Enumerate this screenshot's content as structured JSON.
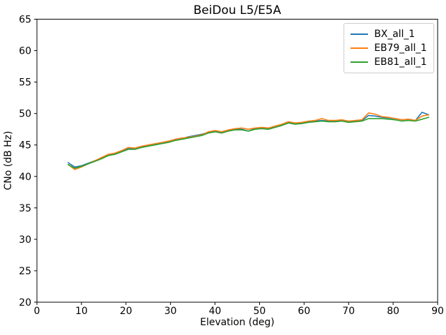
{
  "chart_data": {
    "type": "line",
    "title": "BeiDou L5/E5A",
    "xlabel": "Elevation (deg)",
    "ylabel": "CNo (dB Hz)",
    "xlim": [
      0,
      90
    ],
    "ylim": [
      20,
      65
    ],
    "x_ticks": [
      0,
      10,
      20,
      30,
      40,
      50,
      60,
      70,
      80,
      90
    ],
    "y_ticks": [
      20,
      25,
      30,
      35,
      40,
      45,
      50,
      55,
      60,
      65
    ],
    "grid": false,
    "legend_position": "upper right",
    "axis_color": "#000000",
    "x": [
      7,
      8.5,
      10,
      11.5,
      13,
      14.5,
      16,
      17.5,
      19,
      20.5,
      22,
      23.5,
      25,
      26.5,
      28,
      29.5,
      31,
      32.5,
      34,
      35.5,
      37,
      38.5,
      40,
      41.5,
      43,
      44.5,
      46,
      47.5,
      49,
      50.5,
      52,
      53.5,
      55,
      56.5,
      58,
      59.5,
      61,
      62.5,
      64,
      65.5,
      67,
      68.5,
      70,
      71.5,
      73,
      74.5,
      76,
      77.5,
      79,
      80.5,
      82,
      83.5,
      85,
      86.5,
      88
    ],
    "series": [
      {
        "name": "BX_all_1",
        "color": "#1f77b4",
        "values": [
          42.2,
          41.5,
          41.7,
          42.1,
          42.5,
          42.9,
          43.4,
          43.6,
          44.0,
          44.4,
          44.4,
          44.7,
          44.9,
          45.1,
          45.3,
          45.5,
          45.8,
          46.0,
          46.3,
          46.5,
          46.7,
          47.0,
          47.2,
          47.0,
          47.3,
          47.5,
          47.5,
          47.2,
          47.6,
          47.7,
          47.5,
          47.9,
          48.2,
          48.6,
          48.4,
          48.5,
          48.7,
          48.8,
          48.9,
          48.8,
          48.8,
          48.9,
          48.7,
          48.8,
          48.9,
          49.7,
          49.6,
          49.4,
          49.3,
          49.2,
          49.0,
          49.1,
          48.9,
          50.2,
          49.8
        ]
      },
      {
        "name": "EB79_all_1",
        "color": "#ff7f0e",
        "values": [
          41.9,
          41.1,
          41.5,
          42.0,
          42.5,
          43.0,
          43.5,
          43.7,
          44.1,
          44.6,
          44.5,
          44.8,
          45.0,
          45.2,
          45.4,
          45.6,
          45.9,
          46.1,
          46.2,
          46.4,
          46.6,
          47.1,
          47.3,
          47.1,
          47.4,
          47.6,
          47.7,
          47.5,
          47.7,
          47.8,
          47.7,
          48.0,
          48.3,
          48.7,
          48.5,
          48.6,
          48.8,
          48.9,
          49.2,
          48.9,
          48.9,
          49.0,
          48.8,
          48.9,
          49.0,
          50.1,
          49.9,
          49.5,
          49.4,
          49.2,
          49.0,
          49.1,
          48.9,
          49.6,
          49.8
        ]
      },
      {
        "name": "EB81_all_1",
        "color": "#2ca02c",
        "values": [
          41.9,
          41.3,
          41.6,
          42.0,
          42.4,
          42.8,
          43.3,
          43.5,
          43.9,
          44.3,
          44.3,
          44.6,
          44.8,
          45.0,
          45.2,
          45.4,
          45.7,
          45.9,
          46.1,
          46.3,
          46.5,
          46.9,
          47.1,
          46.9,
          47.2,
          47.4,
          47.4,
          47.2,
          47.5,
          47.6,
          47.5,
          47.8,
          48.1,
          48.5,
          48.3,
          48.4,
          48.6,
          48.7,
          48.8,
          48.7,
          48.7,
          48.8,
          48.6,
          48.7,
          48.8,
          49.2,
          49.2,
          49.2,
          49.1,
          49.0,
          48.8,
          48.9,
          48.8,
          49.1,
          49.4
        ]
      }
    ]
  }
}
